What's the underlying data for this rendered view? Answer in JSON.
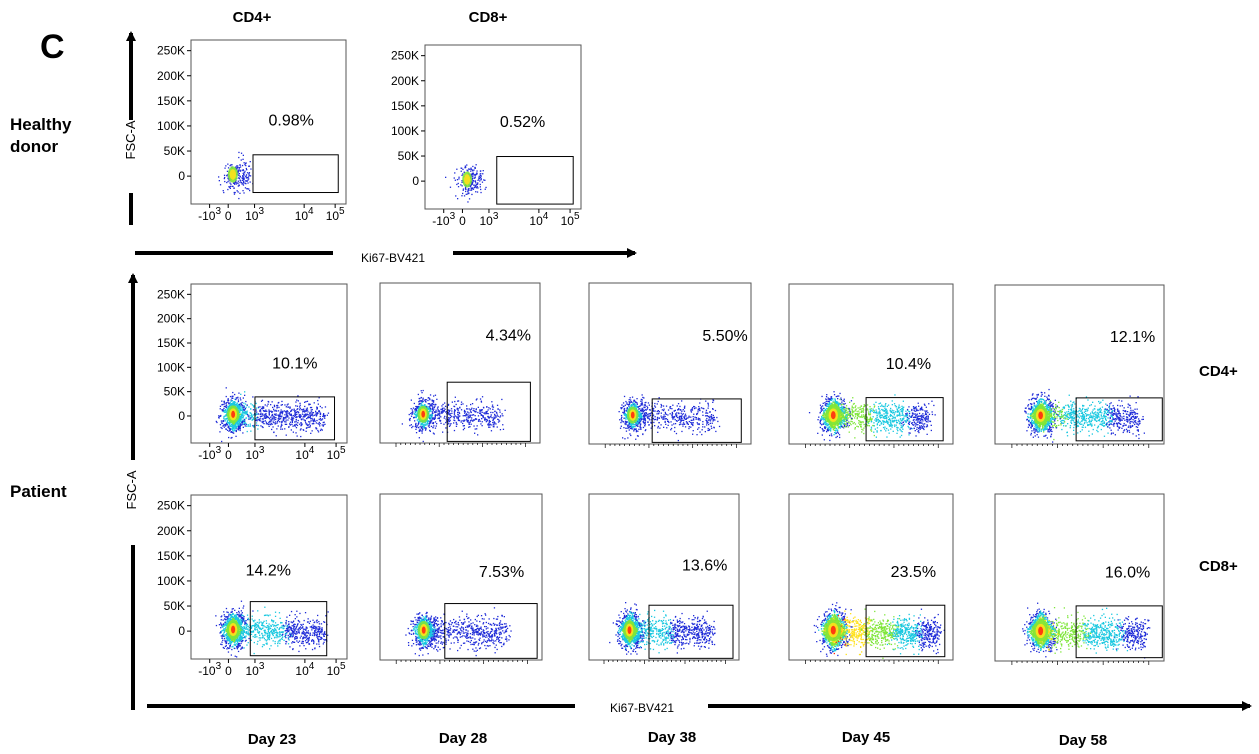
{
  "panel_letter": "C",
  "healthy": {
    "row_label_line1": "Healthy",
    "row_label_line2": "donor",
    "y_axis_label": "FSC-A",
    "x_axis_label": "Ki67-BV421",
    "col_labels": [
      "CD4+",
      "CD8+"
    ]
  },
  "patient": {
    "row_label": "Patient",
    "y_axis_label": "FSC-A",
    "x_axis_label": "Ki67-BV421",
    "row_right_labels": [
      "CD4+",
      "CD8+"
    ],
    "day_labels": [
      "Day 23",
      "Day 28",
      "Day 38",
      "Day 45",
      "Day 58"
    ]
  },
  "y_ticks": [
    "250K",
    "200K",
    "150K",
    "100K",
    "50K",
    "0"
  ],
  "colors": {
    "density_low": "#1e2bd8",
    "density_mid": "#19c8e0",
    "density_midhigh": "#7ee63a",
    "density_high": "#ffe11a",
    "density_peak": "#ff2a10"
  },
  "chart_data": [
    {
      "type": "scatter",
      "group": "Healthy donor",
      "population": "CD4+",
      "day": "",
      "gate_percent": "0.98%",
      "spread": 0.15,
      "intensity": 0.25,
      "density": 220,
      "show_y_ticks": true,
      "show_x_ticks": true
    },
    {
      "type": "scatter",
      "group": "Healthy donor",
      "population": "CD8+",
      "day": "",
      "gate_percent": "0.52%",
      "spread": 0.12,
      "intensity": 0.2,
      "density": 200,
      "show_y_ticks": true,
      "show_x_ticks": true
    },
    {
      "type": "scatter",
      "group": "Patient",
      "population": "CD4+",
      "day": "Day 23",
      "gate_percent": "10.1%",
      "spread": 0.85,
      "intensity": 0.65,
      "density": 1400,
      "show_y_ticks": true,
      "show_x_ticks": true
    },
    {
      "type": "scatter",
      "group": "Patient",
      "population": "CD4+",
      "day": "Day 28",
      "gate_percent": "4.34%",
      "spread": 0.7,
      "intensity": 0.45,
      "density": 900,
      "show_y_ticks": false,
      "show_x_ticks": false
    },
    {
      "type": "scatter",
      "group": "Patient",
      "population": "CD4+",
      "day": "Day 38",
      "gate_percent": "5.50%",
      "spread": 0.75,
      "intensity": 0.45,
      "density": 900,
      "show_y_ticks": false,
      "show_x_ticks": false
    },
    {
      "type": "scatter",
      "group": "Patient",
      "population": "CD4+",
      "day": "Day 45",
      "gate_percent": "10.4%",
      "spread": 0.85,
      "intensity": 1.0,
      "density": 1800,
      "show_y_ticks": false,
      "show_x_ticks": false
    },
    {
      "type": "scatter",
      "group": "Patient",
      "population": "CD4+",
      "day": "Day 58",
      "gate_percent": "12.1%",
      "spread": 0.85,
      "intensity": 0.9,
      "density": 1700,
      "show_y_ticks": false,
      "show_x_ticks": false
    },
    {
      "type": "scatter",
      "group": "Patient",
      "population": "CD8+",
      "day": "Day 23",
      "gate_percent": "14.2%",
      "spread": 0.85,
      "intensity": 0.8,
      "density": 1600,
      "show_y_ticks": true,
      "show_x_ticks": true
    },
    {
      "type": "scatter",
      "group": "Patient",
      "population": "CD8+",
      "day": "Day 28",
      "gate_percent": "7.53%",
      "spread": 0.75,
      "intensity": 0.55,
      "density": 1200,
      "show_y_ticks": false,
      "show_x_ticks": false
    },
    {
      "type": "scatter",
      "group": "Patient",
      "population": "CD8+",
      "day": "Day 38",
      "gate_percent": "13.6%",
      "spread": 0.8,
      "intensity": 0.75,
      "density": 1500,
      "show_y_ticks": false,
      "show_x_ticks": false
    },
    {
      "type": "scatter",
      "group": "Patient",
      "population": "CD8+",
      "day": "Day 45",
      "gate_percent": "23.5%",
      "spread": 0.95,
      "intensity": 1.2,
      "density": 2300,
      "show_y_ticks": false,
      "show_x_ticks": false
    },
    {
      "type": "scatter",
      "group": "Patient",
      "population": "CD8+",
      "day": "Day 58",
      "gate_percent": "16.0%",
      "spread": 0.9,
      "intensity": 1.05,
      "density": 2000,
      "show_y_ticks": false,
      "show_x_ticks": false
    }
  ]
}
